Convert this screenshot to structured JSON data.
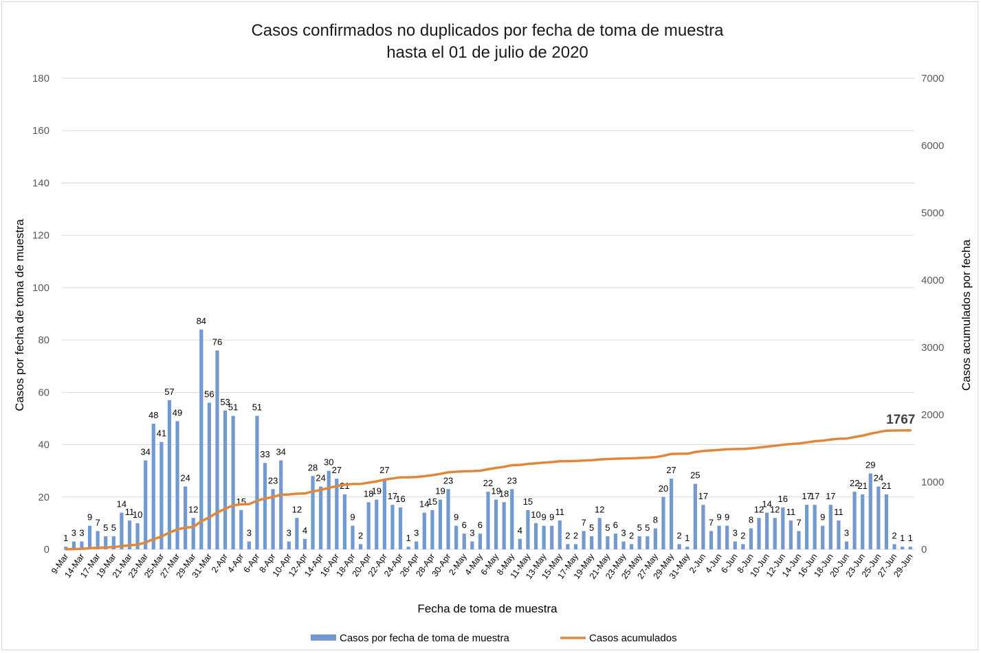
{
  "colors": {
    "bar": "#7399d1",
    "line": "#e0873a",
    "grid": "#d9d9d9",
    "text": "#000000",
    "axis_text": "#595959",
    "title": "#1a1a1a"
  },
  "chart_data": {
    "type": "bar",
    "title": [
      "Casos confirmados no duplicados por fecha de toma de muestra",
      "hasta el 01 de julio de 2020"
    ],
    "xlabel": "Fecha de toma de muestra",
    "ylabel": "Casos por fecha de toma de muestra",
    "y2label": "Casos acumulados por fecha",
    "ylim": [
      0,
      180
    ],
    "yticks": [
      0,
      20,
      40,
      60,
      80,
      100,
      120,
      140,
      160,
      180
    ],
    "y2lim": [
      0,
      7000
    ],
    "y2ticks": [
      0,
      1000,
      2000,
      3000,
      4000,
      5000,
      6000,
      7000
    ],
    "grid": true,
    "legend_position": "bottom",
    "x_tick_labels": [
      "9-Mar",
      "14-Mar",
      "17-Mar",
      "19-Mar",
      "21-Mar",
      "23-Mar",
      "25-Mar",
      "27-Mar",
      "29-Mar",
      "31-Mar",
      "2-Apr",
      "4-Apr",
      "6-Apr",
      "8-Apr",
      "10-Apr",
      "12-Apr",
      "14-Apr",
      "16-Apr",
      "18-Apr",
      "20-Apr",
      "22-Apr",
      "24-Apr",
      "26-Apr",
      "28-Apr",
      "30-Apr",
      "2-May",
      "4-May",
      "6-May",
      "8-May",
      "11-May",
      "13-May",
      "15-May",
      "17-May",
      "19-May",
      "21-May",
      "23-May",
      "25-May",
      "27-May",
      "29-May",
      "31-May",
      "2-Jun",
      "4-Jun",
      "6-Jun",
      "8-Jun",
      "10-Jun",
      "12-Jun",
      "14-Jun",
      "16-Jun",
      "18-Jun",
      "20-Jun",
      "23-Jun",
      "25-Jun",
      "27-Jun",
      "29-Jun"
    ],
    "series": [
      {
        "name": "Casos por fecha de toma de muestra",
        "type": "bar",
        "values": [
          1,
          3,
          3,
          9,
          7,
          5,
          5,
          14,
          11,
          10,
          34,
          48,
          41,
          57,
          49,
          24,
          12,
          84,
          56,
          76,
          53,
          51,
          15,
          3,
          51,
          33,
          23,
          34,
          3,
          12,
          4,
          28,
          24,
          30,
          27,
          21,
          9,
          2,
          18,
          19,
          27,
          17,
          16,
          1,
          3,
          14,
          15,
          19,
          23,
          9,
          6,
          3,
          6,
          22,
          19,
          18,
          23,
          4,
          15,
          10,
          9,
          9,
          11,
          2,
          2,
          7,
          5,
          12,
          5,
          6,
          3,
          2,
          5,
          5,
          8,
          20,
          27,
          2,
          1,
          25,
          17,
          7,
          9,
          9,
          3,
          2,
          8,
          12,
          14,
          12,
          16,
          11,
          7,
          17,
          17,
          9,
          17,
          11,
          3,
          22,
          21,
          29,
          24,
          21,
          2,
          1,
          1
        ]
      },
      {
        "name": "Casos acumulados",
        "type": "line",
        "final_label": "1767",
        "values": [
          1,
          4,
          7,
          16,
          23,
          28,
          33,
          47,
          58,
          68,
          102,
          150,
          191,
          248,
          297,
          321,
          333,
          417,
          473,
          549,
          602,
          653,
          668,
          671,
          722,
          755,
          778,
          812,
          815,
          827,
          831,
          859,
          883,
          913,
          940,
          961,
          970,
          972,
          990,
          1009,
          1036,
          1053,
          1069,
          1070,
          1073,
          1087,
          1102,
          1121,
          1144,
          1153,
          1159,
          1162,
          1168,
          1190,
          1209,
          1227,
          1250,
          1254,
          1269,
          1279,
          1288,
          1297,
          1308,
          1310,
          1312,
          1319,
          1324,
          1336,
          1341,
          1347,
          1350,
          1352,
          1357,
          1362,
          1370,
          1390,
          1417,
          1419,
          1420,
          1445,
          1462,
          1469,
          1478,
          1487,
          1490,
          1492,
          1500,
          1512,
          1526,
          1538,
          1554,
          1565,
          1572,
          1589,
          1606,
          1615,
          1632,
          1643,
          1646,
          1668,
          1689,
          1718,
          1742,
          1763,
          1765,
          1766,
          1767
        ]
      }
    ]
  }
}
